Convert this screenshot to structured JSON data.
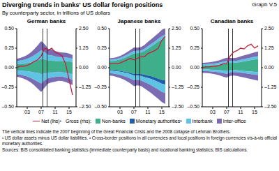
{
  "title": "Diverging trends in banks' US dollar foreign positions",
  "graph_label": "Graph V.5",
  "subtitle": "By counterparty sector, in trillions of US dollars",
  "gross_label": "Gross (rhs):",
  "notes": [
    "The vertical lines indicate the 2007 beginning of the Great Financial Crisis and the 2008 collapse of Lehman Brothers.",
    "¹ US dollar assets minus US dollar liabilities.   ² Cross-border positions in all currencies and local positions in foreign currencies vis-à-vis official monetary authorities.",
    "Sources: BIS consolidated banking statistics (immediate counterparty basis) and locational banking statistics; BIS calculations."
  ],
  "chart_data": [
    {
      "type": "area",
      "title": "German banks",
      "stacked": true,
      "x": [
        2000,
        2001,
        2002,
        2003,
        2004,
        2005,
        2006,
        2007,
        2008,
        2009,
        2010,
        2011,
        2012,
        2013,
        2014,
        2015,
        2016
      ],
      "xlim": [
        2000,
        2017
      ],
      "xticks": [
        {
          "value": 2003,
          "label": "03"
        },
        {
          "value": 2007,
          "label": "07"
        },
        {
          "value": 2011,
          "label": "11"
        },
        {
          "value": 2015,
          "label": "15"
        }
      ],
      "ylim": [
        -0.5,
        0.5
      ],
      "yticks": [
        {
          "value": -0.5,
          "label": "–0.50"
        },
        {
          "value": -0.25,
          "label": "–0.25"
        },
        {
          "value": 0,
          "label": "0.00"
        },
        {
          "value": 0.25,
          "label": "0.25"
        },
        {
          "value": 0.5,
          "label": "0.50"
        }
      ],
      "y2lim": [
        -2.5,
        2.5
      ],
      "y2ticks": [
        {
          "value": -2.5,
          "label": "–2.50"
        },
        {
          "value": -1.25,
          "label": "–1.25"
        },
        {
          "value": 0,
          "label": "0.00"
        },
        {
          "value": 1.25,
          "label": "1.25"
        },
        {
          "value": 2.5,
          "label": "2.50"
        }
      ],
      "reference_lines": [
        2007.5,
        2008.7
      ],
      "series": [
        {
          "name": "Net (lhs)¹",
          "type": "line",
          "color": "#c0223b",
          "values": [
            0.0,
            0.02,
            0.02,
            0.03,
            0.05,
            0.08,
            0.1,
            0.15,
            0.25,
            0.22,
            0.25,
            0.2,
            0.18,
            0.15,
            0.05,
            -0.15,
            -0.35
          ]
        },
        {
          "name": "Non-banks",
          "type": "area",
          "axis": "y2",
          "color": "#3fae8b",
          "values": [
            0.2,
            0.22,
            0.24,
            0.27,
            0.32,
            0.38,
            0.45,
            0.55,
            0.52,
            0.45,
            0.45,
            0.42,
            0.4,
            0.4,
            0.4,
            0.38,
            0.35
          ],
          "liabilities": [
            -0.15,
            -0.16,
            -0.18,
            -0.2,
            -0.24,
            -0.28,
            -0.32,
            -0.38,
            -0.35,
            -0.3,
            -0.28,
            -0.27,
            -0.26,
            -0.27,
            -0.3,
            -0.35,
            -0.4
          ]
        },
        {
          "name": "Monetary authorities²",
          "type": "area",
          "axis": "y2",
          "color": "#1f5fa8",
          "values": [
            0.02,
            0.02,
            0.02,
            0.02,
            0.02,
            0.02,
            0.02,
            0.02,
            0.02,
            0.02,
            0.02,
            0.02,
            0.02,
            0.02,
            0.02,
            0.02,
            0.02
          ],
          "liabilities": [
            -0.02,
            -0.02,
            -0.02,
            -0.02,
            -0.02,
            -0.02,
            -0.02,
            -0.02,
            -0.02,
            -0.02,
            -0.02,
            -0.02,
            -0.02,
            -0.02,
            -0.02,
            -0.02,
            -0.02
          ]
        },
        {
          "name": "Interbank",
          "type": "area",
          "axis": "y2",
          "color": "#5fc3e4",
          "values": [
            0.2,
            0.22,
            0.24,
            0.28,
            0.33,
            0.4,
            0.48,
            0.55,
            0.45,
            0.35,
            0.32,
            0.28,
            0.26,
            0.25,
            0.24,
            0.22,
            0.2
          ],
          "liabilities": [
            -0.25,
            -0.27,
            -0.3,
            -0.34,
            -0.4,
            -0.47,
            -0.55,
            -0.6,
            -0.45,
            -0.35,
            -0.32,
            -0.3,
            -0.28,
            -0.28,
            -0.3,
            -0.32,
            -0.35
          ]
        },
        {
          "name": "Inter-office",
          "type": "area",
          "axis": "y2",
          "color": "#7b6bb2",
          "values": [
            0.15,
            0.17,
            0.2,
            0.25,
            0.3,
            0.38,
            0.48,
            0.58,
            0.52,
            0.4,
            0.38,
            0.35,
            0.32,
            0.3,
            0.3,
            0.28,
            0.25
          ],
          "liabilities": [
            -0.15,
            -0.17,
            -0.2,
            -0.24,
            -0.28,
            -0.35,
            -0.45,
            -0.55,
            -0.45,
            -0.35,
            -0.32,
            -0.3,
            -0.28,
            -0.28,
            -0.3,
            -0.32,
            -0.35
          ]
        }
      ]
    },
    {
      "type": "area",
      "title": "Japanese banks",
      "stacked": true,
      "x": [
        2000,
        2001,
        2002,
        2003,
        2004,
        2005,
        2006,
        2007,
        2008,
        2009,
        2010,
        2011,
        2012,
        2013,
        2014,
        2015,
        2016
      ],
      "xlim": [
        2000,
        2017
      ],
      "xticks": [
        {
          "value": 2003,
          "label": "03"
        },
        {
          "value": 2007,
          "label": "07"
        },
        {
          "value": 2011,
          "label": "11"
        },
        {
          "value": 2015,
          "label": "15"
        }
      ],
      "ylim": [
        -0.5,
        0.5
      ],
      "yticks": [
        {
          "value": -0.5,
          "label": "–0.50"
        },
        {
          "value": -0.25,
          "label": "–0.25"
        },
        {
          "value": 0,
          "label": "0.00"
        },
        {
          "value": 0.25,
          "label": "0.25"
        },
        {
          "value": 0.5,
          "label": "0.50"
        }
      ],
      "y2lim": [
        -2.5,
        2.5
      ],
      "y2ticks": [
        {
          "value": -2.5,
          "label": "–2.50"
        },
        {
          "value": -1.25,
          "label": "–1.25"
        },
        {
          "value": 0,
          "label": "0.00"
        },
        {
          "value": 1.25,
          "label": "1.25"
        },
        {
          "value": 2.5,
          "label": "2.50"
        }
      ],
      "reference_lines": [
        2007.5,
        2008.7
      ],
      "series": [
        {
          "name": "Net (lhs)¹",
          "type": "line",
          "color": "#c0223b",
          "values": [
            0.05,
            0.05,
            0.05,
            0.06,
            0.08,
            0.1,
            0.12,
            0.1,
            0.12,
            0.14,
            0.14,
            0.18,
            0.2,
            0.22,
            0.25,
            0.35,
            0.4
          ]
        },
        {
          "name": "Non-banks",
          "type": "area",
          "axis": "y2",
          "color": "#3fae8b",
          "values": [
            0.4,
            0.42,
            0.45,
            0.5,
            0.58,
            0.68,
            0.8,
            0.9,
            0.92,
            0.95,
            1.05,
            1.2,
            1.35,
            1.5,
            1.65,
            1.8,
            1.9
          ],
          "liabilities": [
            -0.15,
            -0.16,
            -0.18,
            -0.2,
            -0.24,
            -0.28,
            -0.33,
            -0.4,
            -0.38,
            -0.4,
            -0.45,
            -0.5,
            -0.55,
            -0.62,
            -0.7,
            -0.78,
            -0.82
          ]
        },
        {
          "name": "Monetary authorities²",
          "type": "area",
          "axis": "y2",
          "color": "#1f5fa8",
          "values": [
            0.02,
            0.02,
            0.02,
            0.02,
            0.02,
            0.02,
            0.02,
            0.02,
            0.02,
            0.02,
            0.02,
            0.02,
            0.02,
            0.02,
            0.02,
            0.02,
            0.02
          ],
          "liabilities": [
            -0.05,
            -0.05,
            -0.05,
            -0.06,
            -0.06,
            -0.07,
            -0.08,
            -0.1,
            -0.12,
            -0.13,
            -0.15,
            -0.16,
            -0.18,
            -0.2,
            -0.22,
            -0.25,
            -0.25
          ]
        },
        {
          "name": "Interbank",
          "type": "area",
          "axis": "y2",
          "color": "#5fc3e4",
          "values": [
            0.1,
            0.1,
            0.1,
            0.11,
            0.12,
            0.13,
            0.14,
            0.15,
            0.14,
            0.13,
            0.14,
            0.15,
            0.16,
            0.17,
            0.18,
            0.2,
            0.2
          ],
          "liabilities": [
            -0.15,
            -0.16,
            -0.18,
            -0.2,
            -0.22,
            -0.25,
            -0.28,
            -0.3,
            -0.28,
            -0.28,
            -0.32,
            -0.36,
            -0.4,
            -0.45,
            -0.48,
            -0.52,
            -0.55
          ]
        },
        {
          "name": "Inter-office",
          "type": "area",
          "axis": "y2",
          "color": "#7b6bb2",
          "values": [
            0.08,
            0.09,
            0.1,
            0.12,
            0.14,
            0.16,
            0.18,
            0.22,
            0.2,
            0.22,
            0.24,
            0.28,
            0.3,
            0.33,
            0.36,
            0.4,
            0.42
          ],
          "liabilities": [
            -0.15,
            -0.16,
            -0.18,
            -0.2,
            -0.23,
            -0.27,
            -0.32,
            -0.38,
            -0.35,
            -0.36,
            -0.4,
            -0.45,
            -0.5,
            -0.55,
            -0.6,
            -0.65,
            -0.7
          ]
        }
      ]
    },
    {
      "type": "area",
      "title": "Canadian banks",
      "stacked": true,
      "x": [
        2000,
        2001,
        2002,
        2003,
        2004,
        2005,
        2006,
        2007,
        2008,
        2009,
        2010,
        2011,
        2012,
        2013,
        2014,
        2015,
        2016
      ],
      "xlim": [
        2000,
        2017
      ],
      "xticks": [
        {
          "value": 2003,
          "label": "03"
        },
        {
          "value": 2007,
          "label": "07"
        },
        {
          "value": 2011,
          "label": "11"
        },
        {
          "value": 2015,
          "label": "15"
        }
      ],
      "ylim": [
        -0.5,
        0.5
      ],
      "yticks": [
        {
          "value": -0.5,
          "label": "–0.50"
        },
        {
          "value": -0.25,
          "label": "–0.25"
        },
        {
          "value": 0,
          "label": "0.00"
        },
        {
          "value": 0.25,
          "label": "0.25"
        },
        {
          "value": 0.5,
          "label": "0.50"
        }
      ],
      "y2lim": [
        -2.5,
        2.5
      ],
      "y2ticks": [
        {
          "value": -2.5,
          "label": "–2.50"
        },
        {
          "value": -1.25,
          "label": "–1.25"
        },
        {
          "value": 0,
          "label": "0.00"
        },
        {
          "value": 1.25,
          "label": "1.25"
        },
        {
          "value": 2.5,
          "label": "2.50"
        }
      ],
      "reference_lines": [
        2007.5,
        2008.7
      ],
      "series": [
        {
          "name": "Net (lhs)¹",
          "type": "line",
          "color": "#c0223b",
          "values": [
            0.0,
            0.01,
            0.01,
            0.02,
            0.02,
            0.03,
            0.05,
            0.05,
            0.15,
            0.2,
            0.22,
            0.25,
            0.24,
            0.28,
            0.3,
            0.25,
            0.28
          ]
        },
        {
          "name": "Non-banks",
          "type": "area",
          "axis": "y2",
          "color": "#3fae8b",
          "values": [
            0.12,
            0.13,
            0.14,
            0.15,
            0.17,
            0.2,
            0.24,
            0.28,
            0.3,
            0.3,
            0.32,
            0.36,
            0.4,
            0.44,
            0.48,
            0.52,
            0.55
          ],
          "liabilities": [
            -0.1,
            -0.1,
            -0.11,
            -0.12,
            -0.13,
            -0.15,
            -0.17,
            -0.2,
            -0.16,
            -0.15,
            -0.16,
            -0.18,
            -0.2,
            -0.22,
            -0.24,
            -0.26,
            -0.28
          ]
        },
        {
          "name": "Monetary authorities²",
          "type": "area",
          "axis": "y2",
          "color": "#1f5fa8",
          "values": [
            0.01,
            0.01,
            0.01,
            0.01,
            0.01,
            0.01,
            0.01,
            0.01,
            0.01,
            0.01,
            0.01,
            0.01,
            0.01,
            0.01,
            0.01,
            0.01,
            0.01
          ],
          "liabilities": [
            -0.01,
            -0.01,
            -0.01,
            -0.01,
            -0.01,
            -0.01,
            -0.01,
            -0.01,
            -0.01,
            -0.01,
            -0.01,
            -0.01,
            -0.01,
            -0.01,
            -0.01,
            -0.01,
            -0.01
          ]
        },
        {
          "name": "Interbank",
          "type": "area",
          "axis": "y2",
          "color": "#5fc3e4",
          "values": [
            0.08,
            0.08,
            0.09,
            0.1,
            0.11,
            0.12,
            0.14,
            0.15,
            0.13,
            0.12,
            0.12,
            0.13,
            0.14,
            0.15,
            0.16,
            0.17,
            0.18
          ],
          "liabilities": [
            -0.1,
            -0.1,
            -0.11,
            -0.12,
            -0.13,
            -0.15,
            -0.17,
            -0.18,
            -0.14,
            -0.12,
            -0.12,
            -0.13,
            -0.14,
            -0.15,
            -0.16,
            -0.17,
            -0.18
          ]
        },
        {
          "name": "Inter-office",
          "type": "area",
          "axis": "y2",
          "color": "#7b6bb2",
          "values": [
            0.1,
            0.1,
            0.11,
            0.12,
            0.13,
            0.15,
            0.18,
            0.2,
            0.18,
            0.18,
            0.2,
            0.22,
            0.24,
            0.25,
            0.27,
            0.28,
            0.3
          ],
          "liabilities": [
            -0.12,
            -0.12,
            -0.13,
            -0.14,
            -0.16,
            -0.18,
            -0.22,
            -0.25,
            -0.22,
            -0.22,
            -0.24,
            -0.26,
            -0.28,
            -0.3,
            -0.32,
            -0.34,
            -0.36
          ]
        }
      ]
    }
  ]
}
